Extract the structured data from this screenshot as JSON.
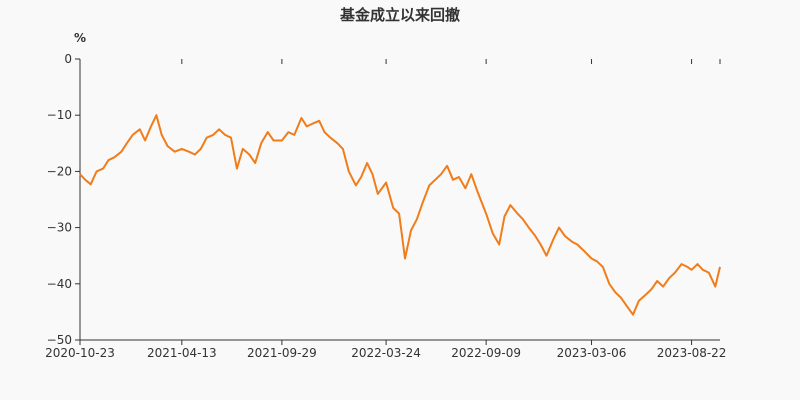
{
  "chart_data": {
    "type": "line",
    "title": "基金成立以来回撤",
    "y_unit": "%",
    "ylim": [
      -50,
      0
    ],
    "y_ticks": [
      "0",
      "−10",
      "−20",
      "−30",
      "−40",
      "−50"
    ],
    "x_ticks": [
      "2020-10-23",
      "2021-04-13",
      "2021-09-29",
      "2022-03-24",
      "2022-09-09",
      "2023-03-06",
      "2023-08-22"
    ],
    "x_range": [
      "2020-10-23",
      "2023-10-09"
    ],
    "grid": false,
    "legend": "none",
    "series": [
      {
        "color": "#f07c1a",
        "points": [
          [
            "2020-10-23",
            -20.5
          ],
          [
            "2020-11-01",
            -21.5
          ],
          [
            "2020-11-10",
            -22.3
          ],
          [
            "2020-11-20",
            -20.0
          ],
          [
            "2020-12-01",
            -19.5
          ],
          [
            "2020-12-10",
            -18.0
          ],
          [
            "2020-12-20",
            -17.5
          ],
          [
            "2021-01-01",
            -16.5
          ],
          [
            "2021-01-10",
            -15.0
          ],
          [
            "2021-01-20",
            -13.5
          ],
          [
            "2021-02-01",
            -12.5
          ],
          [
            "2021-02-10",
            -14.5
          ],
          [
            "2021-02-20",
            -12.0
          ],
          [
            "2021-03-01",
            -10.0
          ],
          [
            "2021-03-10",
            -13.5
          ],
          [
            "2021-03-20",
            -15.5
          ],
          [
            "2021-04-01",
            -16.5
          ],
          [
            "2021-04-13",
            -16.0
          ],
          [
            "2021-04-25",
            -16.5
          ],
          [
            "2021-05-05",
            -17.0
          ],
          [
            "2021-05-15",
            -16.0
          ],
          [
            "2021-05-25",
            -14.0
          ],
          [
            "2021-06-05",
            -13.5
          ],
          [
            "2021-06-15",
            -12.5
          ],
          [
            "2021-06-25",
            -13.5
          ],
          [
            "2021-07-05",
            -14.0
          ],
          [
            "2021-07-15",
            -19.5
          ],
          [
            "2021-07-25",
            -16.0
          ],
          [
            "2021-08-05",
            -17.0
          ],
          [
            "2021-08-15",
            -18.5
          ],
          [
            "2021-08-25",
            -15.0
          ],
          [
            "2021-09-05",
            -13.0
          ],
          [
            "2021-09-15",
            -14.5
          ],
          [
            "2021-09-29",
            -14.5
          ],
          [
            "2021-10-10",
            -13.0
          ],
          [
            "2021-10-20",
            -13.5
          ],
          [
            "2021-11-01",
            -10.5
          ],
          [
            "2021-11-10",
            -12.0
          ],
          [
            "2021-11-20",
            -11.5
          ],
          [
            "2021-12-01",
            -11.0
          ],
          [
            "2021-12-10",
            -13.0
          ],
          [
            "2021-12-20",
            -14.0
          ],
          [
            "2022-01-01",
            -15.0
          ],
          [
            "2022-01-10",
            -16.0
          ],
          [
            "2022-01-20",
            -20.0
          ],
          [
            "2022-02-01",
            -22.5
          ],
          [
            "2022-02-10",
            -21.0
          ],
          [
            "2022-02-20",
            -18.5
          ],
          [
            "2022-03-01",
            -20.5
          ],
          [
            "2022-03-10",
            -24.0
          ],
          [
            "2022-03-24",
            -22.0
          ],
          [
            "2022-04-05",
            -26.5
          ],
          [
            "2022-04-15",
            -27.5
          ],
          [
            "2022-04-25",
            -35.5
          ],
          [
            "2022-05-05",
            -30.5
          ],
          [
            "2022-05-15",
            -28.5
          ],
          [
            "2022-05-25",
            -25.5
          ],
          [
            "2022-06-05",
            -22.5
          ],
          [
            "2022-06-15",
            -21.5
          ],
          [
            "2022-06-25",
            -20.5
          ],
          [
            "2022-07-05",
            -19.0
          ],
          [
            "2022-07-15",
            -21.5
          ],
          [
            "2022-07-25",
            -21.0
          ],
          [
            "2022-08-05",
            -23.0
          ],
          [
            "2022-08-15",
            -20.5
          ],
          [
            "2022-08-25",
            -23.5
          ],
          [
            "2022-09-09",
            -27.5
          ],
          [
            "2022-09-20",
            -31.0
          ],
          [
            "2022-10-01",
            -33.0
          ],
          [
            "2022-10-10",
            -28.0
          ],
          [
            "2022-10-20",
            -26.0
          ],
          [
            "2022-11-01",
            -27.5
          ],
          [
            "2022-11-10",
            -28.5
          ],
          [
            "2022-11-20",
            -30.0
          ],
          [
            "2022-12-01",
            -31.5
          ],
          [
            "2022-12-10",
            -33.0
          ],
          [
            "2022-12-20",
            -35.0
          ],
          [
            "2023-01-01",
            -32.0
          ],
          [
            "2023-01-10",
            -30.0
          ],
          [
            "2023-01-20",
            -31.5
          ],
          [
            "2023-02-01",
            -32.5
          ],
          [
            "2023-02-10",
            -33.0
          ],
          [
            "2023-02-20",
            -34.0
          ],
          [
            "2023-03-06",
            -35.5
          ],
          [
            "2023-03-15",
            -36.0
          ],
          [
            "2023-03-25",
            -37.0
          ],
          [
            "2023-04-05",
            -40.0
          ],
          [
            "2023-04-15",
            -41.5
          ],
          [
            "2023-04-25",
            -42.5
          ],
          [
            "2023-05-05",
            -44.0
          ],
          [
            "2023-05-15",
            -45.5
          ],
          [
            "2023-05-25",
            -43.0
          ],
          [
            "2023-06-05",
            -42.0
          ],
          [
            "2023-06-15",
            -41.0
          ],
          [
            "2023-06-25",
            -39.5
          ],
          [
            "2023-07-05",
            -40.5
          ],
          [
            "2023-07-15",
            -39.0
          ],
          [
            "2023-07-25",
            -38.0
          ],
          [
            "2023-08-05",
            -36.5
          ],
          [
            "2023-08-15",
            -37.0
          ],
          [
            "2023-08-22",
            -37.5
          ],
          [
            "2023-09-01",
            -36.5
          ],
          [
            "2023-09-10",
            -37.5
          ],
          [
            "2023-09-20",
            -38.0
          ],
          [
            "2023-10-01",
            -40.5
          ],
          [
            "2023-10-09",
            -37.0
          ]
        ]
      }
    ]
  }
}
